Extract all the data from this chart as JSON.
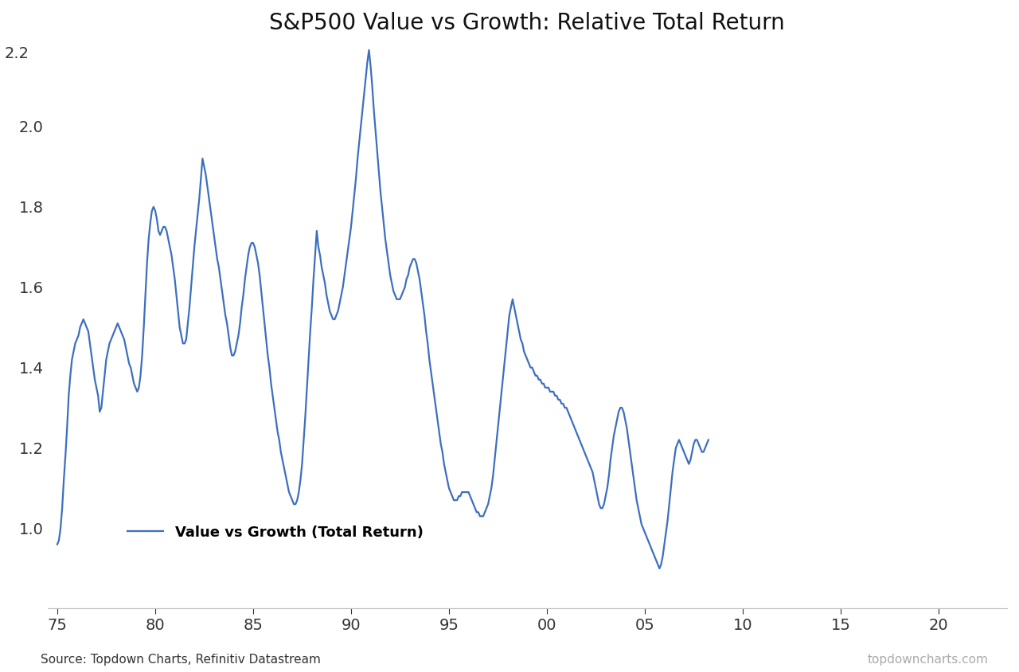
{
  "title": "S&P500 Value vs Growth: Relative Total Return",
  "line_color": "#3d6fbe",
  "line_width": 1.6,
  "legend_label": "Value vs Growth (Total Return)",
  "source_left": "Source: Topdown Charts, Refinitiv Datastream",
  "source_right": "topdowncharts.com",
  "ylim": [
    0.8,
    2.2
  ],
  "yticks": [
    1.0,
    1.2,
    1.4,
    1.6,
    1.8,
    2.0
  ],
  "ytick_top_label": "2.2",
  "xticks": [
    1975,
    1980,
    1985,
    1990,
    1995,
    2000,
    2005,
    2010,
    2015,
    2020
  ],
  "xtick_labels": [
    "75",
    "80",
    "85",
    "90",
    "95",
    "00",
    "05",
    "10",
    "15",
    "20"
  ],
  "xlim_start": 1974.5,
  "xlim_end": 2023.5,
  "background_color": "#ffffff",
  "y": [
    0.96,
    0.97,
    1.0,
    1.05,
    1.12,
    1.18,
    1.25,
    1.33,
    1.38,
    1.42,
    1.44,
    1.46,
    1.47,
    1.48,
    1.5,
    1.51,
    1.52,
    1.51,
    1.5,
    1.49,
    1.46,
    1.43,
    1.4,
    1.37,
    1.35,
    1.33,
    1.29,
    1.3,
    1.34,
    1.38,
    1.42,
    1.44,
    1.46,
    1.47,
    1.48,
    1.49,
    1.5,
    1.51,
    1.5,
    1.49,
    1.48,
    1.47,
    1.45,
    1.43,
    1.41,
    1.4,
    1.38,
    1.36,
    1.35,
    1.34,
    1.35,
    1.38,
    1.43,
    1.5,
    1.58,
    1.66,
    1.72,
    1.76,
    1.79,
    1.8,
    1.79,
    1.77,
    1.74,
    1.73,
    1.74,
    1.75,
    1.75,
    1.74,
    1.72,
    1.7,
    1.68,
    1.65,
    1.62,
    1.58,
    1.54,
    1.5,
    1.48,
    1.46,
    1.46,
    1.47,
    1.51,
    1.55,
    1.6,
    1.65,
    1.7,
    1.74,
    1.78,
    1.82,
    1.87,
    1.92,
    1.9,
    1.88,
    1.85,
    1.82,
    1.79,
    1.76,
    1.73,
    1.7,
    1.67,
    1.65,
    1.62,
    1.59,
    1.56,
    1.53,
    1.51,
    1.48,
    1.45,
    1.43,
    1.43,
    1.44,
    1.46,
    1.48,
    1.51,
    1.55,
    1.58,
    1.62,
    1.65,
    1.68,
    1.7,
    1.71,
    1.71,
    1.7,
    1.68,
    1.66,
    1.63,
    1.59,
    1.55,
    1.51,
    1.47,
    1.43,
    1.4,
    1.36,
    1.33,
    1.3,
    1.27,
    1.24,
    1.22,
    1.19,
    1.17,
    1.15,
    1.13,
    1.11,
    1.09,
    1.08,
    1.07,
    1.06,
    1.06,
    1.07,
    1.09,
    1.12,
    1.16,
    1.22,
    1.28,
    1.35,
    1.42,
    1.49,
    1.55,
    1.62,
    1.68,
    1.74,
    1.7,
    1.68,
    1.65,
    1.63,
    1.61,
    1.58,
    1.56,
    1.54,
    1.53,
    1.52,
    1.52,
    1.53,
    1.54,
    1.56,
    1.58,
    1.6,
    1.63,
    1.66,
    1.69,
    1.72,
    1.75,
    1.79,
    1.83,
    1.87,
    1.92,
    1.96,
    2.0,
    2.04,
    2.08,
    2.12,
    2.16,
    2.19,
    2.15,
    2.1,
    2.04,
    1.99,
    1.94,
    1.89,
    1.84,
    1.8,
    1.76,
    1.72,
    1.69,
    1.66,
    1.63,
    1.61,
    1.59,
    1.58,
    1.57,
    1.57,
    1.57,
    1.58,
    1.59,
    1.6,
    1.62,
    1.63,
    1.65,
    1.66,
    1.67,
    1.67,
    1.66,
    1.64,
    1.62,
    1.59,
    1.56,
    1.53,
    1.49,
    1.46,
    1.42,
    1.39,
    1.36,
    1.33,
    1.3,
    1.27,
    1.24,
    1.21,
    1.19,
    1.16,
    1.14,
    1.12,
    1.1,
    1.09,
    1.08,
    1.07,
    1.07,
    1.07,
    1.08,
    1.08,
    1.09,
    1.09,
    1.09,
    1.09,
    1.09,
    1.08,
    1.07,
    1.06,
    1.05,
    1.04,
    1.04,
    1.03,
    1.03,
    1.03,
    1.04,
    1.05,
    1.06,
    1.08,
    1.1,
    1.13,
    1.17,
    1.21,
    1.25,
    1.29,
    1.33,
    1.37,
    1.41,
    1.45,
    1.49,
    1.53,
    1.55,
    1.57,
    1.55,
    1.53,
    1.51,
    1.49,
    1.47,
    1.46,
    1.44,
    1.43,
    1.42,
    1.41,
    1.4,
    1.4,
    1.39,
    1.38,
    1.38,
    1.37,
    1.37,
    1.36,
    1.36,
    1.35,
    1.35,
    1.35,
    1.34,
    1.34,
    1.34,
    1.33,
    1.33,
    1.32,
    1.32,
    1.31,
    1.31,
    1.3,
    1.3,
    1.29,
    1.28,
    1.27,
    1.26,
    1.25,
    1.24,
    1.23,
    1.22,
    1.21,
    1.2,
    1.19,
    1.18,
    1.17,
    1.16,
    1.15,
    1.14,
    1.12,
    1.1,
    1.08,
    1.06,
    1.05,
    1.05,
    1.06,
    1.08,
    1.1,
    1.13,
    1.17,
    1.2,
    1.23,
    1.25,
    1.27,
    1.29,
    1.3,
    1.3,
    1.29,
    1.27,
    1.25,
    1.22,
    1.19,
    1.16,
    1.13,
    1.1,
    1.07,
    1.05,
    1.03,
    1.01,
    1.0,
    0.99,
    0.98,
    0.97,
    0.96,
    0.95,
    0.94,
    0.93,
    0.92,
    0.91,
    0.9,
    0.91,
    0.93,
    0.96,
    0.99,
    1.02,
    1.06,
    1.1,
    1.14,
    1.17,
    1.2,
    1.21,
    1.22,
    1.21,
    1.2,
    1.19,
    1.18,
    1.17,
    1.16,
    1.17,
    1.19,
    1.21,
    1.22,
    1.22,
    1.21,
    1.2,
    1.19,
    1.19,
    1.2,
    1.21,
    1.22
  ]
}
